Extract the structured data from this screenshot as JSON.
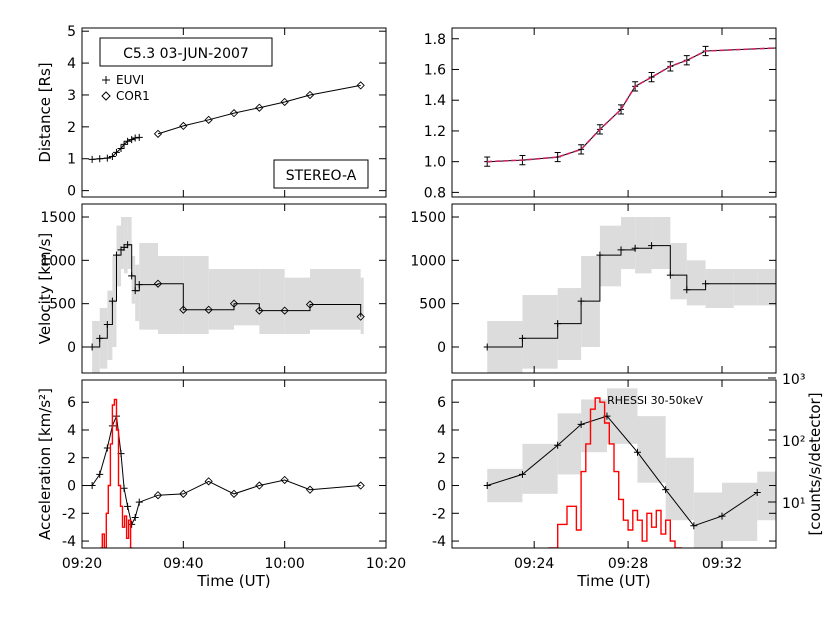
{
  "figure": {
    "colors": {
      "axis": "#000000",
      "data_line": "#000000",
      "error_band": "#dcdcdc",
      "rhessi": "#ff0000",
      "fit": "#cc2266",
      "fit_inner": "#2a2a80"
    }
  },
  "chart_data": [
    {
      "id": "left-distance",
      "type": "line",
      "title": "",
      "xlabel": "",
      "ylabel": "Distance [Rs]",
      "x_unit": "minutes after 09:00 UT",
      "xlim": [
        20,
        80
      ],
      "ylim": [
        -0.2,
        5.1
      ],
      "x_ticks": [
        20,
        40,
        60,
        80
      ],
      "x_tick_labels": [
        "",
        "",
        "",
        ""
      ],
      "y_ticks": [
        0,
        1,
        2,
        3,
        4,
        5
      ],
      "y_tick_labels": [
        "0",
        "1",
        "2",
        "3",
        "4",
        "5"
      ],
      "annotations": {
        "event": "C5.3 03-JUN-2007",
        "spacecraft": "STEREO-A"
      },
      "legend": {
        "position": "top-left",
        "entries": [
          {
            "symbol": "+",
            "label": "EUVI"
          },
          {
            "symbol": "◇",
            "label": "COR1"
          }
        ]
      },
      "series": [
        {
          "name": "EUVI",
          "marker": "plus",
          "x": [
            22.0,
            23.5,
            25.0,
            26.0,
            26.8,
            27.7,
            28.3,
            29.0,
            29.8,
            30.5,
            31.3
          ],
          "y": [
            0.98,
            1.0,
            1.02,
            1.07,
            1.2,
            1.32,
            1.45,
            1.55,
            1.6,
            1.65,
            1.67
          ]
        },
        {
          "name": "COR1",
          "marker": "diamond",
          "x": [
            35,
            40,
            45,
            50,
            55,
            60,
            65,
            75
          ],
          "y": [
            1.78,
            2.03,
            2.22,
            2.43,
            2.6,
            2.78,
            3.0,
            3.3
          ]
        }
      ]
    },
    {
      "id": "right-distance",
      "type": "line",
      "title": "",
      "xlabel": "",
      "ylabel": "",
      "x_unit": "minutes after 09:00 UT",
      "xlim": [
        20.5,
        34.3
      ],
      "ylim": [
        0.77,
        1.87
      ],
      "x_ticks": [
        24,
        28,
        32
      ],
      "x_tick_labels": [
        "",
        "",
        ""
      ],
      "y_ticks": [
        0.8,
        1.0,
        1.2,
        1.4,
        1.6,
        1.8
      ],
      "y_tick_labels": [
        "0.8",
        "1.0",
        "1.2",
        "1.4",
        "1.6",
        "1.8"
      ],
      "series": [
        {
          "name": "EUVI",
          "marker": "errorbar",
          "x": [
            22.0,
            23.5,
            25.0,
            26.0,
            26.8,
            27.7,
            28.3,
            29.0,
            29.8,
            30.5,
            31.3
          ],
          "y": [
            1.0,
            1.01,
            1.03,
            1.08,
            1.21,
            1.34,
            1.49,
            1.55,
            1.62,
            1.66,
            1.72
          ],
          "err": [
            0.03,
            0.03,
            0.03,
            0.03,
            0.03,
            0.03,
            0.03,
            0.03,
            0.03,
            0.03,
            0.03
          ]
        },
        {
          "name": "fit",
          "style": "dashed",
          "x": [
            22.0,
            23.5,
            25.0,
            26.0,
            26.8,
            27.7,
            28.3,
            29.0,
            29.8,
            30.5,
            31.3
          ],
          "y": [
            1.0,
            1.01,
            1.03,
            1.08,
            1.21,
            1.34,
            1.49,
            1.55,
            1.62,
            1.66,
            1.72
          ]
        }
      ]
    },
    {
      "id": "left-velocity",
      "type": "line",
      "title": "",
      "xlabel": "",
      "ylabel": "Velocity [km/s]",
      "x_unit": "minutes after 09:00 UT",
      "xlim": [
        20,
        80
      ],
      "ylim": [
        -300,
        1650
      ],
      "x_ticks": [
        20,
        40,
        60,
        80
      ],
      "x_tick_labels": [
        "",
        "",
        "",
        ""
      ],
      "y_ticks": [
        0,
        500,
        1000,
        1500
      ],
      "y_tick_labels": [
        "0",
        "500",
        "1000",
        "1500"
      ],
      "series": [
        {
          "name": "velocity",
          "style": "steps",
          "x": [
            22.0,
            23.5,
            25.0,
            26.0,
            26.8,
            27.7,
            28.3,
            29.0,
            29.8,
            30.5,
            31.3,
            35,
            40,
            45,
            50,
            55,
            60,
            65,
            75
          ],
          "y": [
            0,
            100,
            260,
            530,
            1060,
            1120,
            1150,
            1180,
            820,
            650,
            720,
            730,
            430,
            430,
            500,
            420,
            420,
            490,
            350
          ],
          "lo": [
            -300,
            -250,
            -150,
            0,
            700,
            900,
            850,
            900,
            500,
            300,
            200,
            150,
            150,
            200,
            250,
            150,
            150,
            200,
            150
          ],
          "hi": [
            300,
            450,
            650,
            1050,
            1400,
            1500,
            1500,
            1500,
            1050,
            950,
            1200,
            1050,
            1050,
            900,
            900,
            900,
            800,
            900,
            800
          ],
          "marker_x": [
            22.0,
            23.5,
            25.0,
            26.0,
            26.8,
            27.7,
            28.3,
            29.0,
            29.8,
            30.5,
            31.3,
            35,
            40,
            45,
            50,
            55,
            60,
            65,
            75
          ]
        }
      ]
    },
    {
      "id": "right-velocity",
      "type": "line",
      "title": "",
      "xlabel": "",
      "ylabel": "",
      "x_unit": "minutes after 09:00 UT",
      "xlim": [
        20.5,
        34.3
      ],
      "ylim": [
        -300,
        1650
      ],
      "x_ticks": [
        24,
        28,
        32
      ],
      "x_tick_labels": [
        "",
        "",
        ""
      ],
      "y_ticks": [
        0,
        500,
        1000,
        1500
      ],
      "y_tick_labels": [
        "0",
        "500",
        "1000",
        "1500"
      ],
      "series": [
        {
          "name": "velocity",
          "style": "steps",
          "x": [
            22.0,
            23.5,
            25.0,
            26.0,
            26.8,
            27.7,
            28.3,
            29.0,
            29.8,
            30.5,
            31.3,
            32.5,
            33.5
          ],
          "y": [
            0,
            100,
            270,
            530,
            1060,
            1120,
            1140,
            1170,
            830,
            660,
            730,
            730,
            730
          ],
          "lo": [
            -300,
            -250,
            -150,
            0,
            700,
            900,
            850,
            900,
            550,
            480,
            450,
            480,
            480
          ],
          "hi": [
            300,
            600,
            680,
            1050,
            1400,
            1500,
            1500,
            1500,
            1200,
            1000,
            900,
            900,
            900
          ],
          "marker_x": [
            22.0,
            23.5,
            25.0,
            26.0,
            26.8,
            27.7,
            28.3,
            29.0,
            29.8,
            30.5,
            31.3
          ]
        }
      ]
    },
    {
      "id": "left-acceleration",
      "type": "line",
      "title": "",
      "xlabel": "Time (UT)",
      "ylabel": "Acceleration [km/s²]",
      "x_unit": "minutes after 09:00 UT",
      "xlim": [
        20,
        80
      ],
      "ylim": [
        -4.5,
        7.6
      ],
      "x_ticks": [
        20,
        40,
        60,
        80
      ],
      "x_tick_labels": [
        "09:20",
        "09:40",
        "10:00",
        "10:20"
      ],
      "y_ticks": [
        -4,
        -2,
        0,
        2,
        4,
        6
      ],
      "y_tick_labels": [
        "-4",
        "-2",
        "0",
        "2",
        "4",
        "6"
      ],
      "series": [
        {
          "name": "acceleration",
          "marker": "plus+diamond",
          "x": [
            22.0,
            23.5,
            25.0,
            26.0,
            26.8,
            27.7,
            28.3,
            29.0,
            29.8,
            30.5,
            31.3,
            35,
            40,
            45,
            50,
            55,
            60,
            65,
            75
          ],
          "y": [
            0,
            0.8,
            2.7,
            4.3,
            5.0,
            2.3,
            -0.2,
            -1.5,
            -2.8,
            -2.3,
            -1.2,
            -0.7,
            -0.6,
            0.3,
            -0.6,
            0,
            0.4,
            -0.3,
            0
          ]
        },
        {
          "name": "RHESSI",
          "style": "histogram",
          "color": "red",
          "x": [
            23.6,
            24.0,
            24.4,
            24.8,
            25.2,
            25.6,
            26.0,
            26.4,
            26.8,
            27.2,
            27.6,
            28.0,
            28.4,
            28.8,
            29.2,
            29.6
          ],
          "y": [
            -4.5,
            -3.5,
            -4.5,
            -2.0,
            0.0,
            3.0,
            5.8,
            6.2,
            4.0,
            0.0,
            -1.5,
            -3.0,
            -2.2,
            -3.8,
            -2.5,
            -4.5
          ]
        }
      ]
    },
    {
      "id": "right-acceleration",
      "type": "line",
      "title": "",
      "xlabel": "Time (UT)",
      "ylabel": "[counts/s/detector]",
      "x_unit": "minutes after 09:00 UT",
      "xlim": [
        20.5,
        34.3
      ],
      "ylim": [
        -4.5,
        7.6
      ],
      "x_ticks": [
        24,
        28,
        32
      ],
      "x_tick_labels": [
        "09:24",
        "09:28",
        "09:32"
      ],
      "y_ticks": [
        -4,
        -2,
        0,
        2,
        4,
        6
      ],
      "y_tick_labels": [
        "-4",
        "-2",
        "0",
        "2",
        "4",
        "6"
      ],
      "y2_scale": "log",
      "y2_tick_labels": [
        "10¹",
        "10²",
        "10³"
      ],
      "series": [
        {
          "name": "acceleration",
          "marker": "plus",
          "x": [
            22.0,
            23.5,
            25.0,
            26.0,
            27.1,
            28.4,
            29.6,
            30.8,
            32.0,
            33.5
          ],
          "y": [
            0,
            0.8,
            2.9,
            4.4,
            5.0,
            2.4,
            -0.3,
            -2.9,
            -2.2,
            -0.5
          ],
          "lo": [
            -1.2,
            -0.6,
            0.8,
            2.4,
            3.0,
            0.2,
            -2.5,
            -4.5,
            -4.0,
            -2.5
          ],
          "hi": [
            1.2,
            3.0,
            5.2,
            6.2,
            7.0,
            5.0,
            2.0,
            -0.5,
            0.2,
            1.0
          ]
        },
        {
          "name": "RHESSI 30-50keV",
          "style": "histogram",
          "color": "red",
          "x": [
            24.6,
            25.0,
            25.4,
            25.8,
            26.0,
            26.2,
            26.4,
            26.6,
            26.8,
            27.0,
            27.2,
            27.4,
            27.6,
            27.8,
            28.0,
            28.2,
            28.4,
            28.6,
            28.8,
            29.0,
            29.2,
            29.4,
            29.6,
            29.8,
            30.0
          ],
          "y": [
            -4.5,
            -2.8,
            -1.5,
            -3.2,
            1.0,
            3.0,
            5.5,
            6.3,
            6.0,
            4.5,
            3.0,
            1.0,
            -1.0,
            -2.5,
            -3.2,
            -1.8,
            -2.5,
            -4.0,
            -2.0,
            -3.0,
            -1.8,
            -3.5,
            -2.5,
            -4.0,
            -4.5
          ]
        }
      ]
    }
  ]
}
